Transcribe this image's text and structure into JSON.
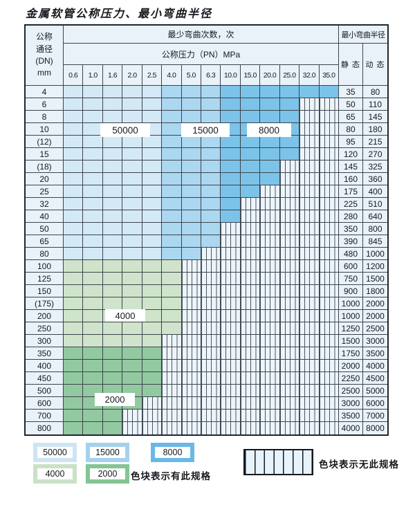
{
  "title": "金属软管公称压力、最小弯曲半径",
  "header": {
    "dn_lines": [
      "公称",
      "通径",
      "(DN)",
      "mm"
    ],
    "radius": "最小弯曲半径",
    "static": "静 态",
    "dynamic": "动 态"
  },
  "chart_data": {
    "type": "heatmap",
    "title": "金属软管公称压力、最小弯曲半径",
    "value_label": "最少弯曲次数，次",
    "x_label": "公称压力（PN）MPa",
    "x_categories": [
      "0.6",
      "1.0",
      "1.6",
      "2.0",
      "2.5",
      "4.0",
      "5.0",
      "6.3",
      "10.0",
      "15.0",
      "20.0",
      "25.0",
      "32.0",
      "35.0"
    ],
    "y_label": "公称通径 (DN) mm",
    "cycle_zone_values": {
      "c50000": "50000",
      "c15000": "15000",
      "c8000": "8000",
      "c4000": "4000",
      "c2000": "2000",
      "x": "无此规格"
    },
    "colors": {
      "c50000": "#d4e9f6",
      "c15000": "#abd7f0",
      "c8000": "#7cc3e9",
      "c4000": "#cfe4cb",
      "c2000": "#93c9a0",
      "no_spec_bg": "#edf4fa",
      "grid_line": "#3c434c",
      "header_bg": "#e9f1f9"
    },
    "rows": [
      {
        "dn": "4",
        "static": "35",
        "dynamic": "80",
        "cells": [
          [
            "c50000",
            5
          ],
          [
            "c15000",
            3
          ],
          [
            "c8000",
            6
          ]
        ]
      },
      {
        "dn": "6",
        "static": "50",
        "dynamic": "110",
        "cells": [
          [
            "c50000",
            5
          ],
          [
            "c15000",
            3
          ],
          [
            "c8000",
            4
          ],
          [
            "x",
            2
          ]
        ]
      },
      {
        "dn": "8",
        "static": "65",
        "dynamic": "145",
        "cells": [
          [
            "c50000",
            5
          ],
          [
            "c15000",
            3
          ],
          [
            "c8000",
            4
          ],
          [
            "x",
            2
          ]
        ]
      },
      {
        "dn": "10",
        "static": "80",
        "dynamic": "180",
        "cells": [
          [
            "c50000",
            5
          ],
          [
            "c15000",
            3
          ],
          [
            "c8000",
            4
          ],
          [
            "x",
            2
          ]
        ]
      },
      {
        "dn": "(12)",
        "static": "95",
        "dynamic": "215",
        "cells": [
          [
            "c50000",
            5
          ],
          [
            "c15000",
            3
          ],
          [
            "c8000",
            4
          ],
          [
            "x",
            2
          ]
        ]
      },
      {
        "dn": "15",
        "static": "120",
        "dynamic": "270",
        "cells": [
          [
            "c50000",
            5
          ],
          [
            "c15000",
            3
          ],
          [
            "c8000",
            4
          ],
          [
            "x",
            2
          ]
        ]
      },
      {
        "dn": "(18)",
        "static": "145",
        "dynamic": "325",
        "cells": [
          [
            "c50000",
            5
          ],
          [
            "c15000",
            3
          ],
          [
            "c8000",
            3
          ],
          [
            "x",
            3
          ]
        ]
      },
      {
        "dn": "20",
        "static": "160",
        "dynamic": "360",
        "cells": [
          [
            "c50000",
            5
          ],
          [
            "c15000",
            3
          ],
          [
            "c8000",
            3
          ],
          [
            "x",
            3
          ]
        ]
      },
      {
        "dn": "25",
        "static": "175",
        "dynamic": "400",
        "cells": [
          [
            "c50000",
            5
          ],
          [
            "c15000",
            3
          ],
          [
            "c8000",
            2
          ],
          [
            "x",
            4
          ]
        ]
      },
      {
        "dn": "32",
        "static": "225",
        "dynamic": "510",
        "cells": [
          [
            "c50000",
            5
          ],
          [
            "c15000",
            3
          ],
          [
            "c8000",
            1
          ],
          [
            "x",
            5
          ]
        ]
      },
      {
        "dn": "40",
        "static": "280",
        "dynamic": "640",
        "cells": [
          [
            "c50000",
            5
          ],
          [
            "c15000",
            3
          ],
          [
            "c8000",
            1
          ],
          [
            "x",
            5
          ]
        ]
      },
      {
        "dn": "50",
        "static": "350",
        "dynamic": "800",
        "cells": [
          [
            "c50000",
            5
          ],
          [
            "c15000",
            3
          ],
          [
            "x",
            6
          ]
        ]
      },
      {
        "dn": "65",
        "static": "390",
        "dynamic": "845",
        "cells": [
          [
            "c50000",
            5
          ],
          [
            "c15000",
            3
          ],
          [
            "x",
            6
          ]
        ]
      },
      {
        "dn": "80",
        "static": "480",
        "dynamic": "1000",
        "cells": [
          [
            "c50000",
            5
          ],
          [
            "c15000",
            2
          ],
          [
            "x",
            7
          ]
        ]
      },
      {
        "dn": "100",
        "static": "600",
        "dynamic": "1200",
        "cells": [
          [
            "c4000",
            6
          ],
          [
            "x",
            8
          ]
        ]
      },
      {
        "dn": "125",
        "static": "750",
        "dynamic": "1500",
        "cells": [
          [
            "c4000",
            6
          ],
          [
            "x",
            8
          ]
        ]
      },
      {
        "dn": "150",
        "static": "900",
        "dynamic": "1800",
        "cells": [
          [
            "c4000",
            6
          ],
          [
            "x",
            8
          ]
        ]
      },
      {
        "dn": "(175)",
        "static": "1000",
        "dynamic": "2000",
        "cells": [
          [
            "c4000",
            6
          ],
          [
            "x",
            8
          ]
        ]
      },
      {
        "dn": "200",
        "static": "1000",
        "dynamic": "2000",
        "cells": [
          [
            "c4000",
            6
          ],
          [
            "x",
            8
          ]
        ]
      },
      {
        "dn": "250",
        "static": "1250",
        "dynamic": "2500",
        "cells": [
          [
            "c4000",
            6
          ],
          [
            "x",
            8
          ]
        ]
      },
      {
        "dn": "300",
        "static": "1500",
        "dynamic": "3000",
        "cells": [
          [
            "c4000",
            5
          ],
          [
            "x",
            9
          ]
        ]
      },
      {
        "dn": "350",
        "static": "1750",
        "dynamic": "3500",
        "cells": [
          [
            "c2000",
            5
          ],
          [
            "x",
            9
          ]
        ]
      },
      {
        "dn": "400",
        "static": "2000",
        "dynamic": "4000",
        "cells": [
          [
            "c2000",
            5
          ],
          [
            "x",
            9
          ]
        ]
      },
      {
        "dn": "450",
        "static": "2250",
        "dynamic": "4500",
        "cells": [
          [
            "c2000",
            5
          ],
          [
            "x",
            9
          ]
        ]
      },
      {
        "dn": "500",
        "static": "2500",
        "dynamic": "5000",
        "cells": [
          [
            "c2000",
            5
          ],
          [
            "x",
            9
          ]
        ]
      },
      {
        "dn": "600",
        "static": "3000",
        "dynamic": "6000",
        "cells": [
          [
            "c2000",
            4
          ],
          [
            "x",
            10
          ]
        ]
      },
      {
        "dn": "700",
        "static": "3500",
        "dynamic": "7000",
        "cells": [
          [
            "c2000",
            3
          ],
          [
            "x",
            11
          ]
        ]
      },
      {
        "dn": "800",
        "static": "4000",
        "dynamic": "8000",
        "cells": [
          [
            "c2000",
            3
          ],
          [
            "x",
            11
          ]
        ]
      }
    ]
  },
  "zone_labels": [
    {
      "text": "50000"
    },
    {
      "text": "15000"
    },
    {
      "text": "8000"
    },
    {
      "text": "4000"
    },
    {
      "text": "2000"
    }
  ],
  "legend": {
    "items": [
      {
        "text": "50000",
        "key": "c50000"
      },
      {
        "text": "15000",
        "key": "c15000"
      },
      {
        "text": "8000",
        "key": "c8000"
      },
      {
        "text": "4000",
        "key": "c4000"
      },
      {
        "text": "2000",
        "key": "c2000"
      }
    ],
    "has_spec_note": "色块表示有此规格",
    "no_spec_note": "色块表示无此规格"
  }
}
